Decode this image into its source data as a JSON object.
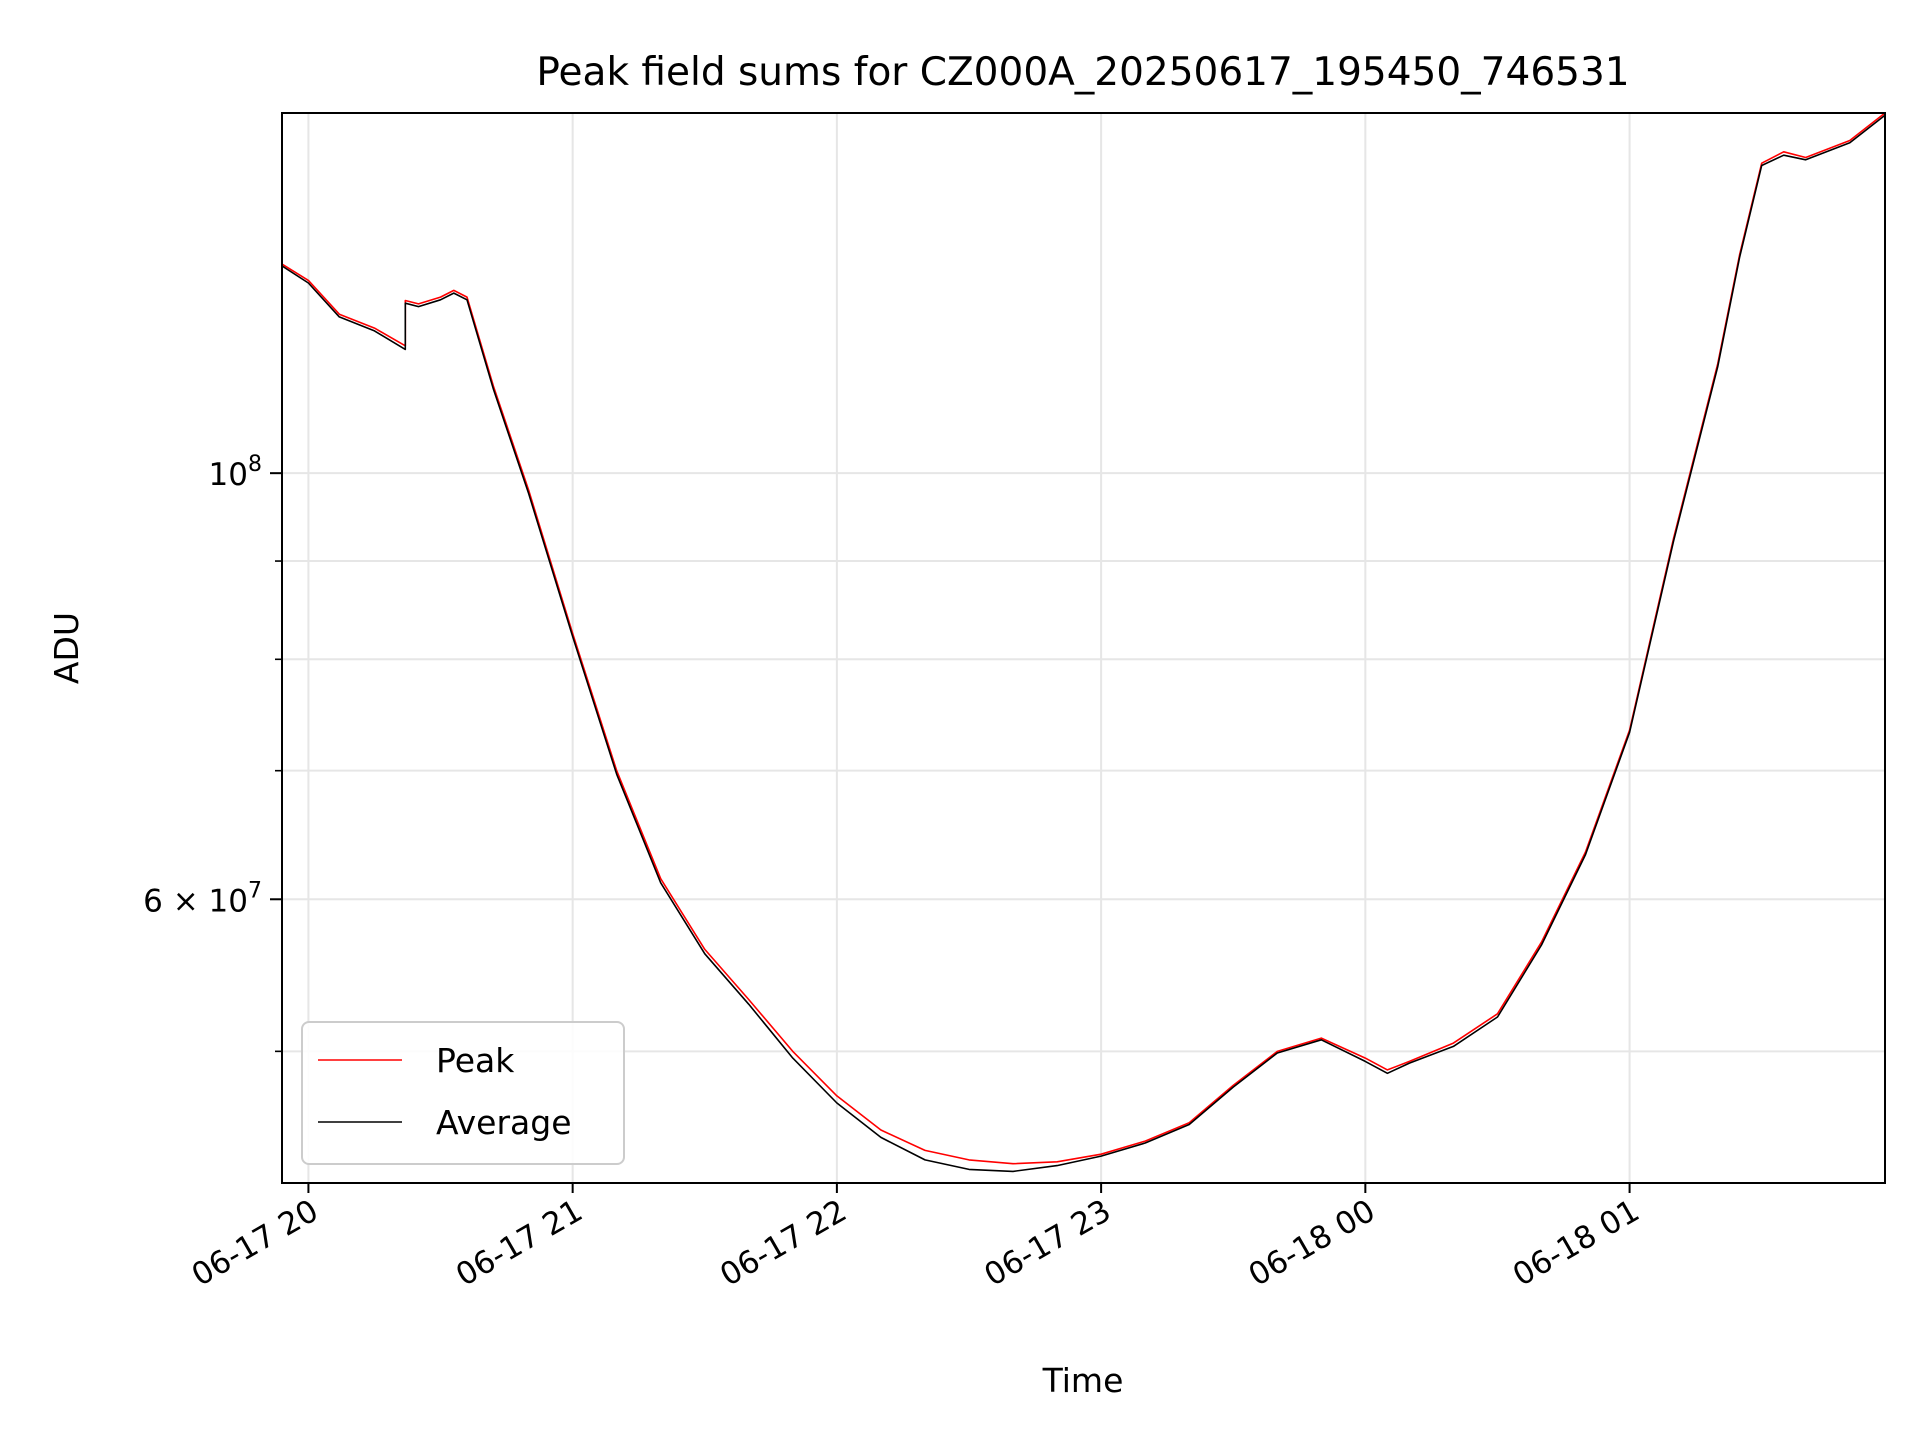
{
  "chart_data": {
    "type": "line",
    "title": "Peak field sums for CZ000A_20250617_195450_746531",
    "xlabel": "Time",
    "ylabel": "ADU",
    "yscale": "log",
    "grid": true,
    "legend_position": "lower-left",
    "xlim": [
      "2025-06-17 19:54",
      "2025-06-18 01:58"
    ],
    "ylim": [
      42700000,
      154000000
    ],
    "x_ticks": [
      {
        "value": "2025-06-17 20:00",
        "label": "06-17 20"
      },
      {
        "value": "2025-06-17 21:00",
        "label": "06-17 21"
      },
      {
        "value": "2025-06-17 22:00",
        "label": "06-17 22"
      },
      {
        "value": "2025-06-17 23:00",
        "label": "06-17 23"
      },
      {
        "value": "2025-06-18 00:00",
        "label": "06-18 00"
      },
      {
        "value": "2025-06-18 01:00",
        "label": "06-18 01"
      }
    ],
    "y_ticks": [
      {
        "value": 100000000,
        "base": "10",
        "exp": "8"
      },
      {
        "value": 60000000,
        "mantissa": "6",
        "base": "10",
        "exp": "7"
      }
    ],
    "y_minor_ticks": [
      50000000,
      70000000,
      80000000,
      90000000
    ],
    "series": [
      {
        "name": "Peak",
        "color": "#ff0000",
        "x": [
          "2025-06-17 19:54",
          "2025-06-17 20:00",
          "2025-06-17 20:07",
          "2025-06-17 20:15",
          "2025-06-17 20:22",
          "2025-06-17 20:22",
          "2025-06-17 20:25",
          "2025-06-17 20:30",
          "2025-06-17 20:33",
          "2025-06-17 20:36",
          "2025-06-17 20:42",
          "2025-06-17 20:50",
          "2025-06-17 21:00",
          "2025-06-17 21:10",
          "2025-06-17 21:20",
          "2025-06-17 21:30",
          "2025-06-17 21:40",
          "2025-06-17 21:50",
          "2025-06-17 22:00",
          "2025-06-17 22:10",
          "2025-06-17 22:20",
          "2025-06-17 22:30",
          "2025-06-17 22:40",
          "2025-06-17 22:50",
          "2025-06-17 23:00",
          "2025-06-17 23:10",
          "2025-06-17 23:20",
          "2025-06-17 23:30",
          "2025-06-17 23:40",
          "2025-06-17 23:50",
          "2025-06-18 00:00",
          "2025-06-18 00:05",
          "2025-06-18 00:10",
          "2025-06-18 00:20",
          "2025-06-18 00:30",
          "2025-06-18 00:40",
          "2025-06-18 00:50",
          "2025-06-18 01:00",
          "2025-06-18 01:10",
          "2025-06-18 01:20",
          "2025-06-18 01:25",
          "2025-06-18 01:30",
          "2025-06-18 01:35",
          "2025-06-18 01:40",
          "2025-06-18 01:50",
          "2025-06-18 01:58"
        ],
        "values": [
          128500000,
          126000000,
          121000000,
          119000000,
          116500000,
          123000000,
          122500000,
          123500000,
          124500000,
          123500000,
          111000000,
          98000000,
          82500000,
          70000000,
          61500000,
          56500000,
          53200000,
          50000000,
          47400000,
          45500000,
          44400000,
          43900000,
          43700000,
          43800000,
          44200000,
          44900000,
          45900000,
          48000000,
          50000000,
          50800000,
          49600000,
          48900000,
          49400000,
          50500000,
          52300000,
          57000000,
          63500000,
          73500000,
          92500000,
          114000000,
          130000000,
          145000000,
          147000000,
          146000000,
          149000000,
          154000000
        ]
      },
      {
        "name": "Average",
        "color": "#000000",
        "x": [
          "2025-06-17 19:54",
          "2025-06-17 20:00",
          "2025-06-17 20:07",
          "2025-06-17 20:15",
          "2025-06-17 20:22",
          "2025-06-17 20:22",
          "2025-06-17 20:25",
          "2025-06-17 20:30",
          "2025-06-17 20:33",
          "2025-06-17 20:36",
          "2025-06-17 20:42",
          "2025-06-17 20:50",
          "2025-06-17 21:00",
          "2025-06-17 21:10",
          "2025-06-17 21:20",
          "2025-06-17 21:30",
          "2025-06-17 21:40",
          "2025-06-17 21:50",
          "2025-06-17 22:00",
          "2025-06-17 22:10",
          "2025-06-17 22:20",
          "2025-06-17 22:30",
          "2025-06-17 22:40",
          "2025-06-17 22:50",
          "2025-06-17 23:00",
          "2025-06-17 23:10",
          "2025-06-17 23:20",
          "2025-06-17 23:30",
          "2025-06-17 23:40",
          "2025-06-17 23:50",
          "2025-06-18 00:00",
          "2025-06-18 00:05",
          "2025-06-18 00:10",
          "2025-06-18 00:20",
          "2025-06-18 00:30",
          "2025-06-18 00:40",
          "2025-06-18 00:50",
          "2025-06-18 01:00",
          "2025-06-18 01:10",
          "2025-06-18 01:20",
          "2025-06-18 01:25",
          "2025-06-18 01:30",
          "2025-06-18 01:35",
          "2025-06-18 01:40",
          "2025-06-18 01:50",
          "2025-06-18 01:58"
        ],
        "values": [
          128200000,
          125600000,
          120600000,
          118600000,
          116000000,
          122600000,
          122100000,
          123100000,
          124100000,
          123100000,
          110600000,
          97600000,
          82200000,
          69700000,
          61200000,
          56200000,
          52900000,
          49600000,
          47000000,
          45100000,
          43900000,
          43400000,
          43300000,
          43600000,
          44100000,
          44800000,
          45800000,
          47900000,
          49900000,
          50700000,
          49400000,
          48700000,
          49300000,
          50300000,
          52100000,
          56800000,
          63300000,
          73300000,
          92200000,
          113600000,
          129600000,
          144600000,
          146400000,
          145600000,
          148600000,
          153600000
        ]
      }
    ]
  }
}
